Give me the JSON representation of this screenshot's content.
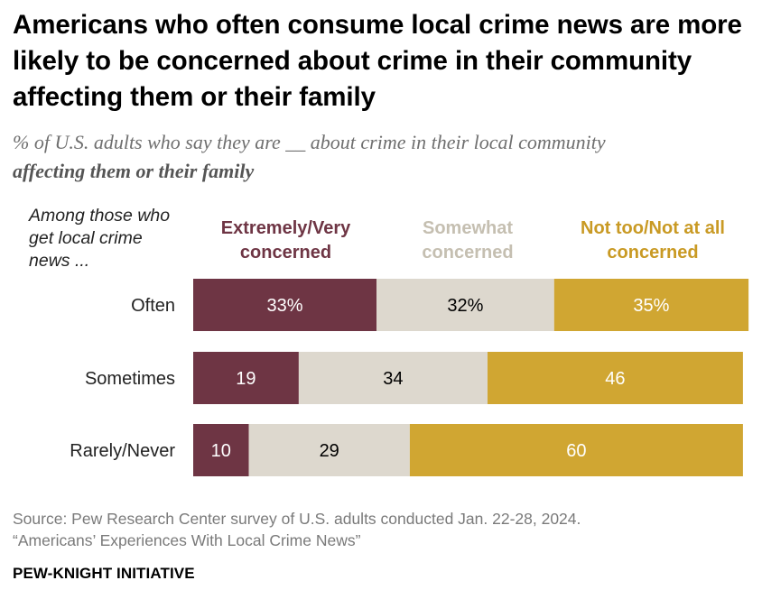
{
  "title": "Americans who often consume local crime news are more likely to be concerned about crime in their community affecting them or their family",
  "subtitle": {
    "line1": "% of U.S. adults who say they are __ about crime in their local community",
    "line2": "affecting them or their family"
  },
  "row_header": "Among those who get local crime news ...",
  "colors": {
    "extremely": "#6e3544",
    "somewhat": "#ddd8ce",
    "not_too": "#d0a632",
    "extremely_label": "#6e3544",
    "somewhat_label": "#c5bfb1",
    "not_too_label": "#c99a24"
  },
  "chart_data": {
    "type": "bar",
    "orientation": "horizontal",
    "stacked": true,
    "categories": [
      "Often",
      "Sometimes",
      "Rarely/Never"
    ],
    "series": [
      {
        "name": "Extremely/Very concerned",
        "values": [
          33,
          19,
          10
        ],
        "labels": [
          "33%",
          "19",
          "10"
        ]
      },
      {
        "name": "Somewhat concerned",
        "values": [
          32,
          34,
          29
        ],
        "labels": [
          "32%",
          "34",
          "29"
        ]
      },
      {
        "name": "Not too/Not at all concerned",
        "values": [
          35,
          46,
          60
        ],
        "labels": [
          "35%",
          "46",
          "60"
        ]
      }
    ],
    "legend": [
      "Extremely/Very concerned",
      "Somewhat concerned",
      "Not too/Not at all concerned"
    ],
    "xlim": [
      0,
      100
    ]
  },
  "source": {
    "line1": "Source: Pew Research Center survey of U.S. adults conducted Jan. 22-28, 2024.",
    "line2": "“Americans’ Experiences With Local Crime News”"
  },
  "brand": "PEW-KNIGHT INITIATIVE"
}
